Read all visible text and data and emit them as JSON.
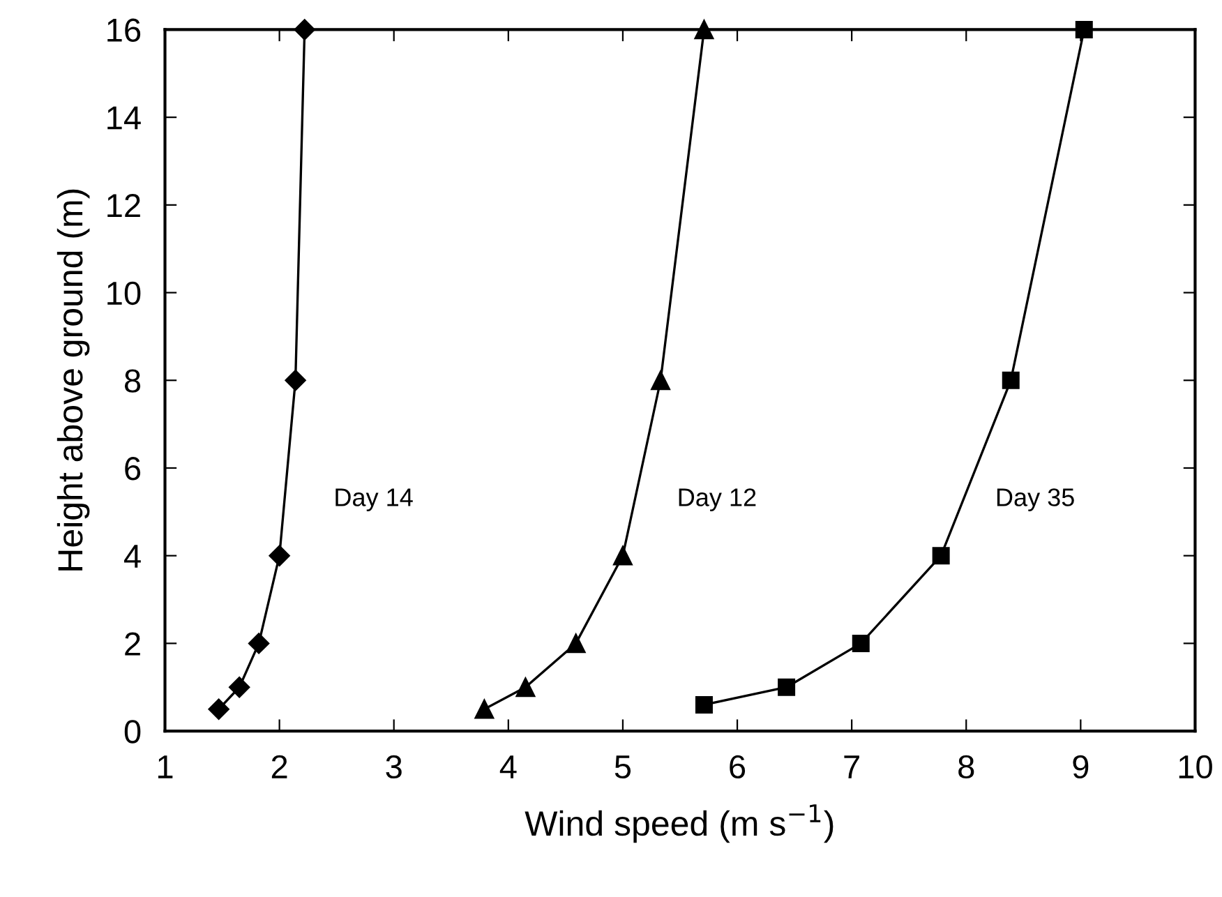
{
  "chart_data": {
    "type": "line",
    "xlabel": "Wind speed (m s$^{−1}$)",
    "ylabel": "Height above ground (m)",
    "xlim": [
      1,
      10
    ],
    "xticks": [
      1,
      2,
      3,
      4,
      5,
      6,
      7,
      8,
      9,
      10
    ],
    "ylim": [
      0,
      16
    ],
    "yticks": [
      0,
      2,
      4,
      6,
      8,
      10,
      12,
      14,
      16
    ],
    "grid": false,
    "legend": false,
    "series": [
      {
        "name": "Day 14",
        "color": "#000000",
        "marker": "diamond",
        "x": [
          1.47,
          1.65,
          1.82,
          2.0,
          2.14,
          2.22
        ],
        "values": [
          0.5,
          1,
          2,
          4,
          8,
          16
        ]
      },
      {
        "name": "Day 12",
        "color": "#000000",
        "marker": "triangle",
        "x": [
          3.79,
          4.15,
          4.59,
          5.0,
          5.33,
          5.71
        ],
        "values": [
          0.5,
          1,
          2,
          4,
          8,
          16
        ]
      },
      {
        "name": "Day 35",
        "color": "#000000",
        "marker": "square",
        "x": [
          5.71,
          6.43,
          7.08,
          7.78,
          8.39,
          9.03
        ],
        "values": [
          0.6,
          1,
          2,
          4,
          8,
          16
        ]
      }
    ]
  }
}
